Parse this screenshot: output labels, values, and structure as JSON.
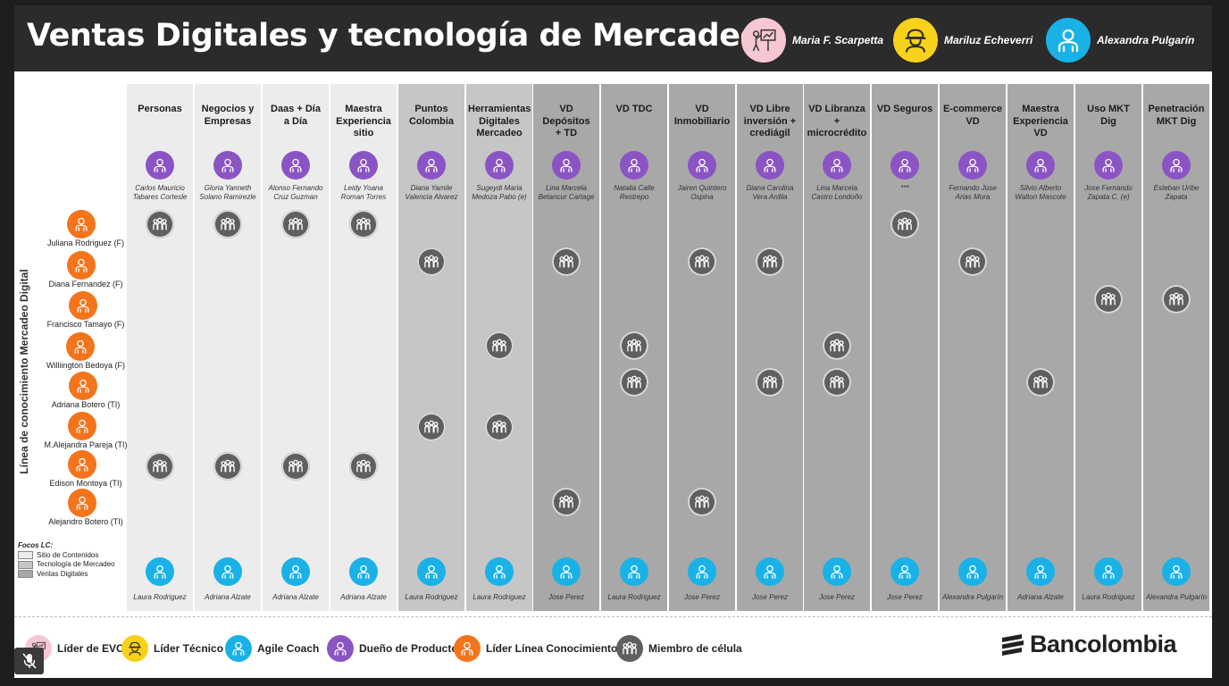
{
  "title": "Ventas Digitales y tecnología de Mercadeo",
  "leaders": [
    {
      "name": "Maria F. Scarpetta",
      "role": "evc"
    },
    {
      "name": "Mariluz Echeverri",
      "role": "tecnico"
    },
    {
      "name": "Alexandra Pulgarín",
      "role": "coach"
    }
  ],
  "role_colors": {
    "evc": "#f7c6d3",
    "tecnico": "#f7d11a",
    "coach": "#1ab2e6",
    "owner": "#8b54c4",
    "lc": "#f4741c",
    "member": "#5f5f5f"
  },
  "role_icons": {
    "evc": "presenter-icon",
    "tecnico": "hard-hat-worker-icon",
    "coach": "person-icon",
    "owner": "person-icon",
    "lc": "person-icon",
    "member": "group-icon"
  },
  "focus_colors": {
    "sitio": "#ececec",
    "tecnologia": "#c6c6c6",
    "ventas": "#a8a8a8"
  },
  "vertical_label": "Línea de conocimiento Mercadeo Digital",
  "knowledge_leads": [
    "Juliana Rodriguez (F)",
    "Diana Fernandez (F)",
    "Francisco Tamayo (F)",
    "Williington Bedoya (F)",
    "Adriana Botero (TI)",
    "M.Alejandra Pareja (TI)",
    "Edison Montoya (TI)",
    "Alejandro Botero (TI)"
  ],
  "columns": [
    {
      "title": [
        "Personas"
      ],
      "focus": "sitio",
      "owner": [
        "Carlos Mauricio",
        "Tabares Cortesle"
      ],
      "coach": "Laura Rodriguez",
      "members": [
        0,
        6
      ]
    },
    {
      "title": [
        "Negocios y",
        "Empresas"
      ],
      "focus": "sitio",
      "owner": [
        "Gloria Yanneth",
        "Solano Ramirezle"
      ],
      "coach": "Adriana Alzate",
      "members": [
        0,
        6
      ]
    },
    {
      "title": [
        "Daas + Día",
        "a Día"
      ],
      "focus": "sitio",
      "owner": [
        "Alonso Fernando",
        "Cruz Guzman"
      ],
      "coach": "Adriana Alzate",
      "members": [
        0,
        6
      ]
    },
    {
      "title": [
        "Maestra",
        "Experiencia",
        "sitio"
      ],
      "focus": "sitio",
      "owner": [
        "Leidy Yoana",
        "Roman Torres"
      ],
      "coach": "Adriana Alzate",
      "members": [
        0,
        6
      ]
    },
    {
      "title": [
        "Puntos",
        "Colombia"
      ],
      "focus": "tecnologia",
      "owner": [
        "Diana Yamile",
        "Valencia Alvarez"
      ],
      "coach": "Laura Rodriguez",
      "members": [
        1,
        5
      ]
    },
    {
      "title": [
        "Herramientas",
        "Digitales",
        "Mercadeo"
      ],
      "focus": "tecnologia",
      "owner": [
        "Sugeydi Maria",
        "Medoza Pabo (e)"
      ],
      "coach": "Laura Rodriguez",
      "members": [
        3,
        5
      ]
    },
    {
      "title": [
        "VD",
        "Depósitos",
        "+ TD"
      ],
      "focus": "ventas",
      "owner": [
        "Lina Marcela",
        "Betancur Cartage"
      ],
      "coach": "Jose Perez",
      "members": [
        1,
        7
      ]
    },
    {
      "title": [
        "VD TDC"
      ],
      "focus": "ventas",
      "owner": [
        "Natalia Calle",
        "Restrepo"
      ],
      "coach": "Laura Rodriguez",
      "members": [
        3,
        4
      ]
    },
    {
      "title": [
        "VD",
        "Inmobiliario"
      ],
      "focus": "ventas",
      "owner": [
        "Jairen Quintero",
        "Ospina"
      ],
      "coach": "Jose Perez",
      "members": [
        1,
        7
      ]
    },
    {
      "title": [
        "VD Libre",
        "inversión +",
        "crediágil"
      ],
      "focus": "ventas",
      "owner": [
        "Diana Carolina",
        "Vera Ardila"
      ],
      "coach": "Jose Perez",
      "members": [
        1,
        4
      ]
    },
    {
      "title": [
        "VD Libranza",
        "+",
        "microcrédito"
      ],
      "focus": "ventas",
      "owner": [
        "Lina Marcela",
        "Castro Londoño"
      ],
      "coach": "Jose Perez",
      "members": [
        3,
        4
      ]
    },
    {
      "title": [
        "VD Seguros"
      ],
      "focus": "ventas",
      "owner": [
        "***"
      ],
      "coach": "Jose Perez",
      "members": [
        0
      ]
    },
    {
      "title": [
        "E-commerce",
        "VD"
      ],
      "focus": "ventas",
      "owner": [
        "Fernando Jose",
        "Arias Mora"
      ],
      "coach": "Alexandra Pulgarín",
      "members": [
        1
      ]
    },
    {
      "title": [
        "Maestra",
        "Experiencia",
        "VD"
      ],
      "focus": "ventas",
      "owner": [
        "Silvio Alberto",
        "Walton Mascote"
      ],
      "coach": "Adriana Alzate",
      "members": [
        4
      ]
    },
    {
      "title": [
        "Uso MKT",
        "Dig"
      ],
      "focus": "ventas",
      "owner": [
        "Jose Fernando",
        "Zapata C. (e)"
      ],
      "coach": "Laura Rodriguez",
      "members": [
        2
      ]
    },
    {
      "title": [
        "Penetración",
        "MKT Dig"
      ],
      "focus": "ventas",
      "owner": [
        "Esteban Uribe",
        "Zapata"
      ],
      "coach": "Alexandra Pulgarín",
      "members": [
        2
      ]
    }
  ],
  "focos": {
    "title": "Focos LC:",
    "items": [
      {
        "label": "Sitio de Contenidos",
        "focus": "sitio"
      },
      {
        "label": "Tecnología de Mercadeo",
        "focus": "tecnologia"
      },
      {
        "label": "Ventas Digitales",
        "focus": "ventas"
      }
    ]
  },
  "legend": [
    {
      "label": "Líder de EVC",
      "role": "evc"
    },
    {
      "label": "Líder Técnico",
      "role": "tecnico"
    },
    {
      "label": "Agile Coach",
      "role": "coach"
    },
    {
      "label": "Dueño de Producto",
      "role": "owner"
    },
    {
      "label": "Líder Línea Conocimiento",
      "role": "lc"
    },
    {
      "label": "Miembro de célula",
      "role": "member"
    }
  ],
  "brand": "Bancolombia",
  "controls": {
    "mic_icon": "mic-muted-icon"
  }
}
